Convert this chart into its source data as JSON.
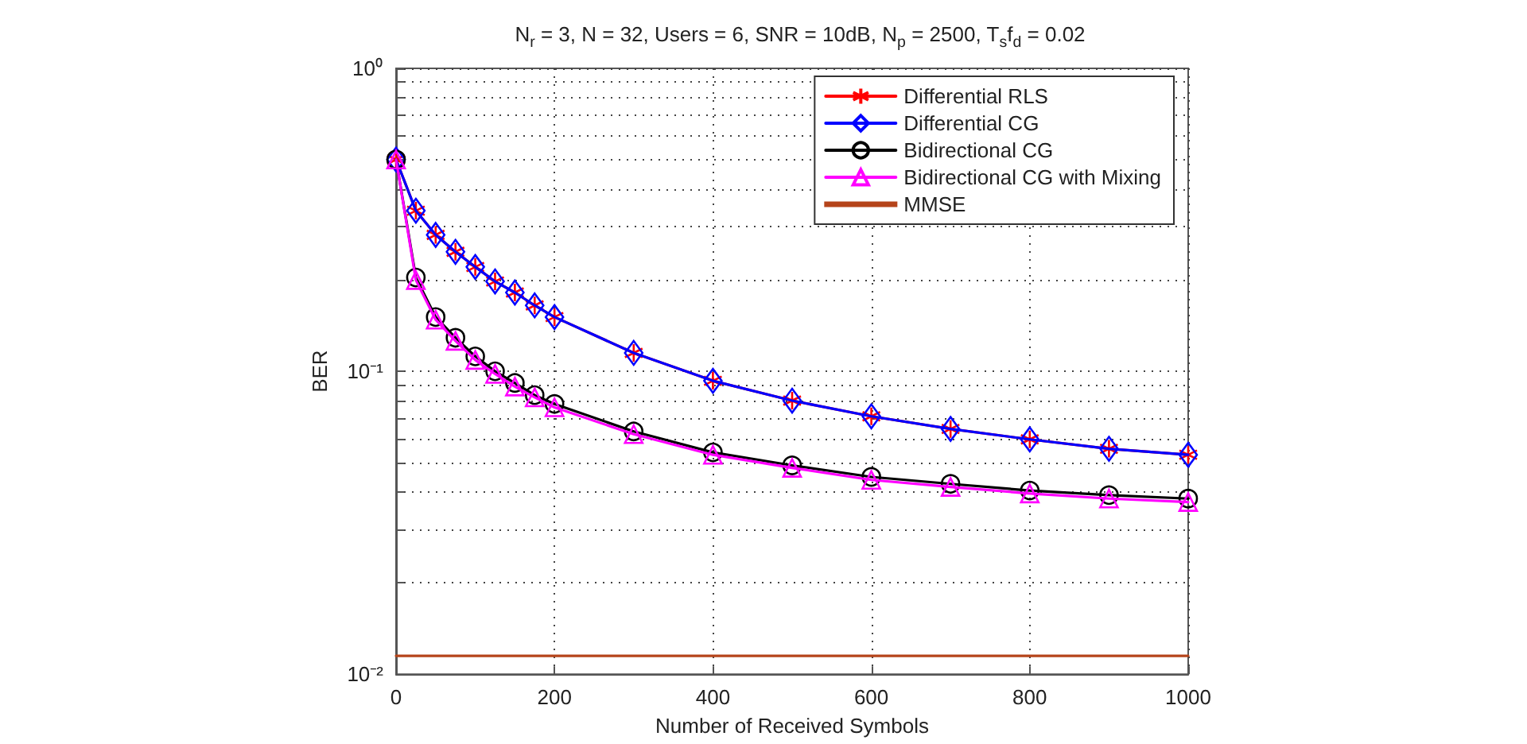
{
  "chart_data": {
    "type": "line",
    "title": "N$_{r}$ = 3, N = 32, Users = 6, SNR = 10dB, N$_{p}$ = 2500, T$_{s}$f$_{d}$ = 0.02",
    "xlabel": "Number of Received Symbols",
    "ylabel": "BER",
    "x": [
      0,
      25,
      50,
      75,
      100,
      125,
      150,
      175,
      200,
      300,
      400,
      500,
      600,
      700,
      800,
      900,
      1000
    ],
    "series": [
      {
        "name": "Differential RLS",
        "color": "#ff0000",
        "marker": "cross",
        "values": [
          0.5,
          0.339,
          0.282,
          0.248,
          0.221,
          0.198,
          0.182,
          0.165,
          0.151,
          0.115,
          0.093,
          0.08,
          0.071,
          0.0645,
          0.0596,
          0.0555,
          0.053
        ]
      },
      {
        "name": "Differential CG",
        "color": "#0000ff",
        "marker": "diamond",
        "values": [
          0.5,
          0.339,
          0.282,
          0.248,
          0.221,
          0.198,
          0.182,
          0.165,
          0.151,
          0.115,
          0.093,
          0.08,
          0.071,
          0.0645,
          0.0596,
          0.0555,
          0.053
        ]
      },
      {
        "name": "Bidirectional CG",
        "color": "#000000",
        "marker": "circle",
        "values": [
          0.5,
          0.204,
          0.151,
          0.129,
          0.112,
          0.1,
          0.0915,
          0.0834,
          0.078,
          0.0633,
          0.054,
          0.0489,
          0.0448,
          0.0425,
          0.0404,
          0.039,
          0.038
        ]
      },
      {
        "name": "Bidirectional CG with Mixing",
        "color": "#ff00ff",
        "marker": "triangle",
        "values": [
          0.5,
          0.2,
          0.148,
          0.126,
          0.109,
          0.098,
          0.089,
          0.082,
          0.076,
          0.062,
          0.053,
          0.048,
          0.0438,
          0.0415,
          0.0395,
          0.038,
          0.037
        ]
      },
      {
        "name": "MMSE",
        "color": "#b5441a",
        "marker": "none",
        "x": [
          0,
          1000
        ],
        "values": [
          0.0115,
          0.0115
        ]
      }
    ],
    "log": "y",
    "xlim": [
      0,
      1000
    ],
    "xticks": [
      0,
      200,
      400,
      600,
      800,
      1000
    ],
    "ylim": [
      0.01,
      1
    ],
    "yticks": [
      {
        "value": 0.01,
        "label": "10⁻²"
      },
      {
        "value": 0.02,
        "label": null
      },
      {
        "value": 0.03,
        "label": null
      },
      {
        "value": 0.04,
        "label": null
      },
      {
        "value": 0.05,
        "label": null
      },
      {
        "value": 0.06,
        "label": null
      },
      {
        "value": 0.07,
        "label": null
      },
      {
        "value": 0.08,
        "label": null
      },
      {
        "value": 0.09,
        "label": null
      },
      {
        "value": 0.1,
        "label": "10⁻¹"
      },
      {
        "value": 0.2,
        "label": null
      },
      {
        "value": 0.3,
        "label": null
      },
      {
        "value": 0.4,
        "label": null
      },
      {
        "value": 0.5,
        "label": null
      },
      {
        "value": 0.6,
        "label": null
      },
      {
        "value": 0.7,
        "label": null
      },
      {
        "value": 0.8,
        "label": null
      },
      {
        "value": 0.9,
        "label": null
      },
      {
        "value": 1,
        "label": "10⁰"
      }
    ],
    "grid": true,
    "legend": "top right",
    "line_style": "solid"
  }
}
